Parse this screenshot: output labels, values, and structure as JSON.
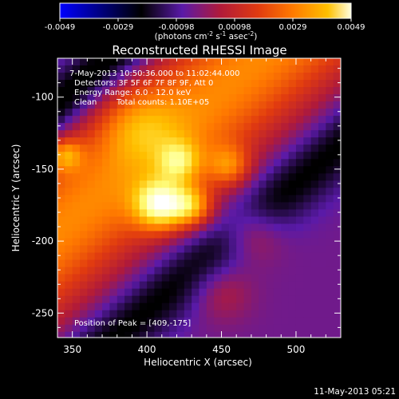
{
  "chart_data": {
    "type": "heatmap",
    "title": "Reconstructed RHESSI Image",
    "xlabel": "Heliocentric X (arcsec)",
    "ylabel": "Heliocentric Y (arcsec)",
    "xlim": [
      340,
      530
    ],
    "ylim": [
      -267,
      -73
    ],
    "x_ticks": [
      350,
      400,
      450,
      500
    ],
    "y_ticks": [
      -100,
      -150,
      -200,
      -250
    ],
    "colorbar": {
      "ticks": [
        "-0.0049",
        "-0.0029",
        "-0.00098",
        "0.00098",
        "0.0029",
        "0.0049"
      ],
      "range": [
        -0.0049,
        0.0049
      ],
      "unit_prefix": "(photons cm",
      "unit_sup1": "-2",
      "unit_mid": " s",
      "unit_sup2": "-1",
      "unit_mid2": " asec",
      "unit_sup3": "-2",
      "unit_suffix": ")"
    },
    "annotations": [
      "7-May-2013 10:50:36.000 to 11:02:44.000",
      "Detectors: 3F 5F 6F 7F 8F 9F, Att 0",
      "Energy Range: 6.0 - 12.0 keV",
      "Clean",
      "Total counts: 1.10E+05"
    ],
    "peak_text": "Position of Peak = [409,-175]",
    "peak": {
      "x": 409,
      "y": -175
    },
    "grid": false,
    "colormap": [
      "#0000ff",
      "#000000",
      "#5a1aa8",
      "#b01a3a",
      "#e03a10",
      "#ff7a00",
      "#ffc000",
      "#ffff80",
      "#ffffff"
    ]
  },
  "footer_date": "11-May-2013 05:21"
}
